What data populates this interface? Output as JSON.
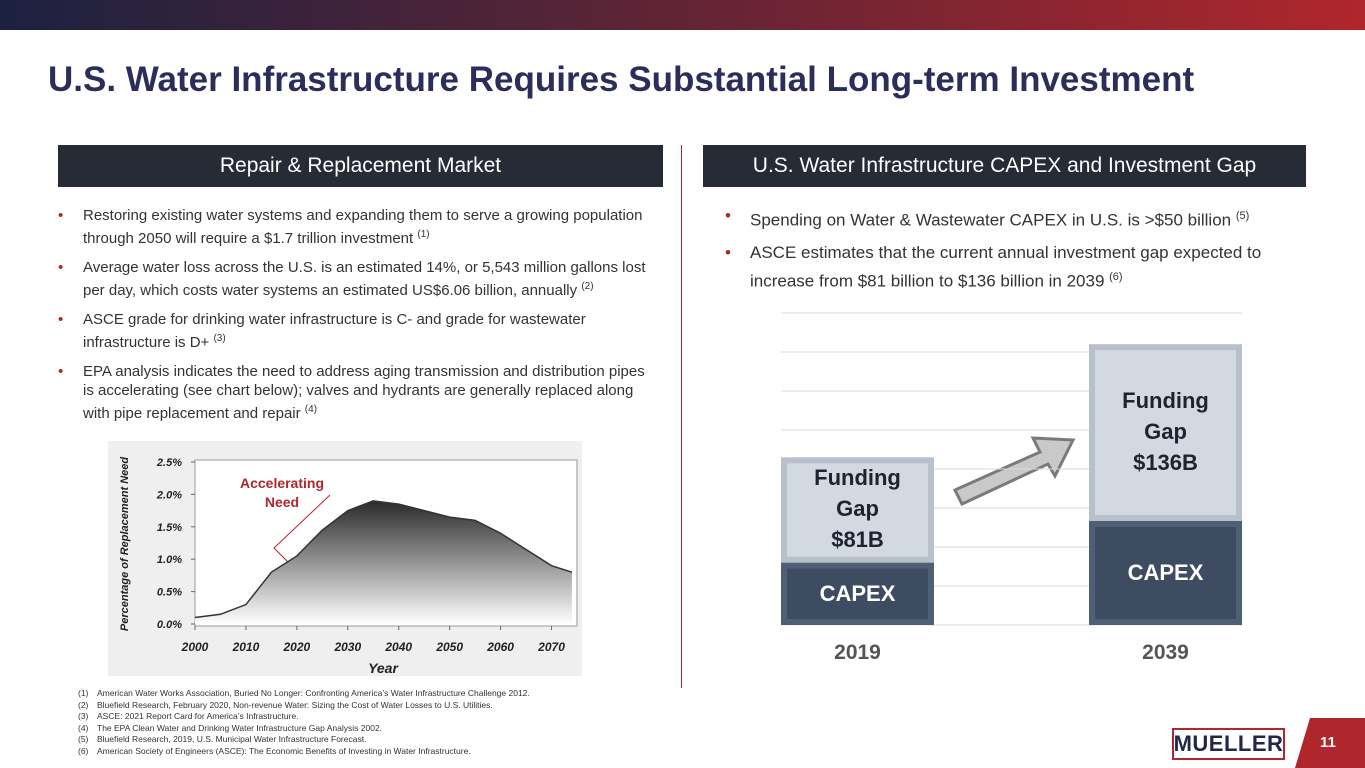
{
  "title": "U.S. Water Infrastructure Requires Substantial Long-term Investment",
  "left": {
    "header": "Repair & Replacement Market",
    "bullets": [
      {
        "text": "Restoring existing water systems and expanding them to serve a growing population through 2050 will require a $1.7 trillion investment",
        "note": "(1)"
      },
      {
        "text": "Average water loss across the U.S. is an estimated 14%, or 5,543 million gallons lost per day, which costs water systems an estimated US$6.06 billion, annually",
        "note": "(2)"
      },
      {
        "text": "ASCE grade for drinking water infrastructure is C- and grade for wastewater infrastructure is D+",
        "note": "(3)"
      },
      {
        "text": "EPA analysis indicates the need to address aging transmission and distribution pipes is accelerating (see chart below); valves and hydrants are generally replaced along with pipe replacement and repair",
        "note": "(4)"
      }
    ]
  },
  "right": {
    "header": "U.S. Water Infrastructure CAPEX and Investment Gap",
    "bullets": [
      {
        "text": "Spending on Water & Wastewater CAPEX in U.S. is >$50 billion",
        "note": "(5)"
      },
      {
        "text": "ASCE estimates that the current annual investment gap expected to increase from $81 billion to $136 billion in 2039",
        "note": "(6)"
      }
    ]
  },
  "chart_data": [
    {
      "type": "area",
      "x_label": "Year",
      "y_label": "Percentage of Replacement Need",
      "annotation": "Accelerating Need",
      "x": [
        2000,
        2005,
        2010,
        2015,
        2020,
        2025,
        2030,
        2035,
        2040,
        2045,
        2050,
        2055,
        2060,
        2065,
        2070,
        2074
      ],
      "values": [
        0.1,
        0.15,
        0.3,
        0.8,
        1.05,
        1.45,
        1.75,
        1.9,
        1.85,
        1.75,
        1.65,
        1.6,
        1.4,
        1.15,
        0.9,
        0.8
      ],
      "color": "#333333",
      "xlim": [
        2000,
        2075
      ],
      "xticks": [
        2000,
        2010,
        2020,
        2030,
        2040,
        2050,
        2060,
        2070
      ],
      "ylim": [
        0,
        2.5
      ],
      "yticks": [
        {
          "value": 0,
          "label": "0.0%"
        },
        {
          "value": 0.5,
          "label": "0.5%"
        },
        {
          "value": 1,
          "label": "1.0%"
        },
        {
          "value": 1.5,
          "label": "1.5%"
        },
        {
          "value": 2,
          "label": "2.0%"
        },
        {
          "value": 2.5,
          "label": "2.5%"
        }
      ]
    },
    {
      "type": "stacked-bar",
      "categories": [
        "2019",
        "2039"
      ],
      "series": [
        {
          "name": "CAPEX",
          "color": "#3e4c61",
          "values": [
            48,
            80
          ]
        },
        {
          "name": "Funding Gap",
          "color": "#d3d9e1",
          "values": [
            81,
            136
          ],
          "value_labels": [
            "$81B",
            "$136B"
          ]
        }
      ],
      "ylim": [
        0,
        240
      ],
      "yticks": [
        0,
        30,
        60,
        90,
        120,
        150,
        180,
        210,
        240
      ],
      "grid": true
    }
  ],
  "footnotes": [
    {
      "num": "(1)",
      "text": "American Water Works Association, Buried No Longer: Confronting America’s Water Infrastructure Challenge 2012."
    },
    {
      "num": "(2)",
      "text": "Bluefield Research, February 2020, Non-revenue Water: Sizing the Cost of Water Losses to U.S. Utilities."
    },
    {
      "num": "(3)",
      "text": "ASCE: 2021 Report Card for America’s Infrastructure."
    },
    {
      "num": "(4)",
      "text": "The EPA Clean Water and Drinking Water Infrastructure Gap Analysis 2002."
    },
    {
      "num": "(5)",
      "text": "Bluefield Research, 2019, U.S. Municipal Water Infrastructure Forecast."
    },
    {
      "num": "(6)",
      "text": "American Society of Engineers (ASCE):  The Economic Benefits of Investing in Water Infrastructure."
    }
  ],
  "logo": "MUELLER",
  "page_number": 11
}
